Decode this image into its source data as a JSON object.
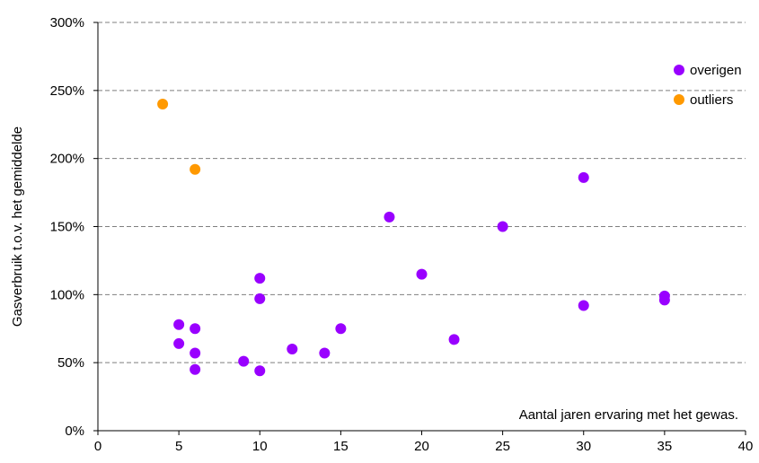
{
  "chart_data": {
    "type": "scatter",
    "title": "",
    "xlabel": "",
    "ylabel": "Gasverbruik t.o.v. het gemiddelde",
    "annotation": "Aantal jaren ervaring met het gewas.",
    "xlim": [
      0,
      40
    ],
    "ylim": [
      0,
      300
    ],
    "x_ticks": [
      0,
      5,
      10,
      15,
      20,
      25,
      30,
      35,
      40
    ],
    "x_tick_labels": [
      "0",
      "5",
      "10",
      "15",
      "20",
      "25",
      "30",
      "35",
      "40"
    ],
    "y_ticks": [
      0,
      50,
      100,
      150,
      200,
      250,
      300
    ],
    "y_tick_labels": [
      "0%",
      "50%",
      "100%",
      "150%",
      "200%",
      "250%",
      "300%"
    ],
    "grid": "horizontal-dashed",
    "legend_position": "top-right",
    "series": [
      {
        "name": "overigen",
        "color": "#9900ff",
        "points": [
          {
            "x": 5,
            "y": 78
          },
          {
            "x": 5,
            "y": 64
          },
          {
            "x": 6,
            "y": 75
          },
          {
            "x": 6,
            "y": 57
          },
          {
            "x": 6,
            "y": 45
          },
          {
            "x": 9,
            "y": 51
          },
          {
            "x": 10,
            "y": 112
          },
          {
            "x": 10,
            "y": 97
          },
          {
            "x": 10,
            "y": 44
          },
          {
            "x": 12,
            "y": 60
          },
          {
            "x": 14,
            "y": 57
          },
          {
            "x": 15,
            "y": 75
          },
          {
            "x": 18,
            "y": 157
          },
          {
            "x": 20,
            "y": 115
          },
          {
            "x": 22,
            "y": 67
          },
          {
            "x": 25,
            "y": 150
          },
          {
            "x": 30,
            "y": 186
          },
          {
            "x": 30,
            "y": 92
          },
          {
            "x": 35,
            "y": 99
          },
          {
            "x": 35,
            "y": 96
          }
        ]
      },
      {
        "name": "outliers",
        "color": "#ff9900",
        "points": [
          {
            "x": 4,
            "y": 240
          },
          {
            "x": 6,
            "y": 192
          }
        ]
      }
    ]
  }
}
